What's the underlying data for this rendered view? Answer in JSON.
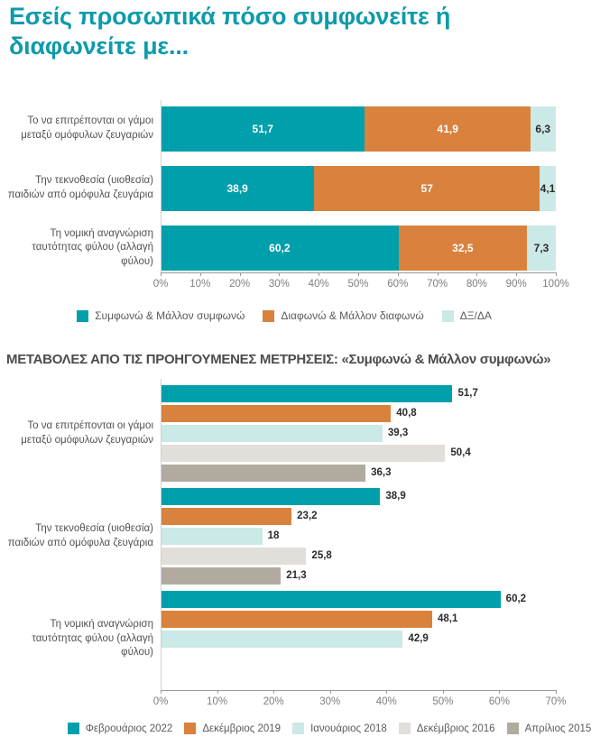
{
  "colors": {
    "teal": "#009FAC",
    "orange": "#D9823E",
    "light_cyan": "#CBE9E6",
    "light_gray": "#E2DFDA",
    "taupe": "#B1AA9F",
    "title_teal": "#0D9BAB",
    "section_title_gray": "#4C4C4C"
  },
  "chart_data": [
    {
      "type": "bar",
      "variant": "horizontal-stacked",
      "title": "Εσείς προσωπικά πόσο συμφωνείτε ή διαφωνείτε με...",
      "categories": [
        "Το να επιτρέπονται οι γάμοι μεταξύ ομόφυλων ζευγαριών",
        "Την τεκνοθεσία (υιοθεσία) παιδιών από ομόφυλα ζευγάρια",
        "Τη νομική αναγνώριση ταυτότητας φύλου (αλλαγή φύλου)"
      ],
      "series": [
        {
          "name": "Συμφωνώ & Μάλλον συμφωνώ",
          "color": "#009FAC",
          "label_color": "#FFFFFF",
          "values": [
            51.7,
            38.9,
            60.2
          ],
          "labels": [
            "51,7",
            "38,9",
            "60,2"
          ]
        },
        {
          "name": "Διαφωνώ & Μάλλον διαφωνώ",
          "color": "#D9823E",
          "label_color": "#FFFFFF",
          "values": [
            41.9,
            57,
            32.5
          ],
          "labels": [
            "41,9",
            "57",
            "32,5"
          ]
        },
        {
          "name": "ΔΞ/ΔΑ",
          "color": "#CBE9E6",
          "label_color": "#2B2B2B",
          "values": [
            6.3,
            4.1,
            7.3
          ],
          "labels": [
            "6,3",
            "4,1",
            "7,3"
          ]
        }
      ],
      "xlim": [
        0,
        100
      ],
      "x_ticks": [
        "0%",
        "10%",
        "20%",
        "30%",
        "40%",
        "50%",
        "60%",
        "70%",
        "80%",
        "90%",
        "100%"
      ],
      "legend_position": "bottom",
      "grid": false
    },
    {
      "type": "bar",
      "variant": "horizontal-grouped",
      "title": "ΜΕΤΑΒΟΛΕΣ ΑΠΟ ΤΙΣ ΠΡΟΗΓΟΥΜΕΝΕΣ ΜΕΤΡΗΣΕΙΣ: «Συμφωνώ & Μάλλον συμφωνώ»",
      "categories": [
        "Το να επιτρέπονται οι γάμοι μεταξύ ομόφυλων ζευγαριών",
        "Την τεκνοθεσία (υιοθεσία) παιδιών από ομόφυλα ζευγάρια",
        "Τη νομική αναγνώριση ταυτότητας φύλου (αλλαγή φύλου)"
      ],
      "series": [
        {
          "name": "Φεβρουάριος 2022",
          "color": "#009FAC",
          "values": [
            51.7,
            38.9,
            60.2
          ],
          "labels": [
            "51,7",
            "38,9",
            "60,2"
          ]
        },
        {
          "name": "Δεκέμβριος 2019",
          "color": "#D9823E",
          "values": [
            40.8,
            23.2,
            48.1
          ],
          "labels": [
            "40,8",
            "23,2",
            "48,1"
          ]
        },
        {
          "name": "Ιανουάριος 2018",
          "color": "#CBE9E6",
          "values": [
            39.3,
            18,
            42.9
          ],
          "labels": [
            "39,3",
            "18",
            "42,9"
          ]
        },
        {
          "name": "Δεκέμβριος 2016",
          "color": "#E2DFDA",
          "values": [
            50.4,
            25.8,
            null
          ],
          "labels": [
            "50,4",
            "25,8",
            null
          ]
        },
        {
          "name": "Απρίλιος 2015",
          "color": "#B1AA9F",
          "values": [
            36.3,
            21.3,
            null
          ],
          "labels": [
            "36,3",
            "21,3",
            null
          ]
        }
      ],
      "xlim": [
        0,
        70
      ],
      "x_ticks": [
        "0%",
        "10%",
        "20%",
        "30%",
        "40%",
        "50%",
        "60%",
        "70%"
      ],
      "legend_position": "bottom",
      "grid": false
    }
  ]
}
